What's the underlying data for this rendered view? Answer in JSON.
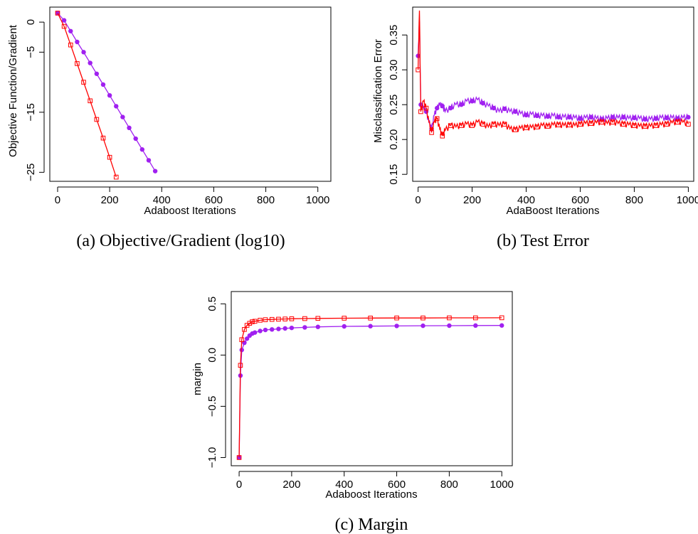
{
  "chart_data": [
    {
      "type": "line",
      "caption": "(a) Objective/Gradient (log10)",
      "xlabel": "Adaboost Iterations",
      "ylabel": "Objective Function/Gradient",
      "xlim": [
        -30,
        1050
      ],
      "ylim": [
        -26.5,
        2.5
      ],
      "xticks": [
        0,
        200,
        400,
        600,
        800,
        1000
      ],
      "yticks": [
        0,
        -5,
        -15,
        -25
      ],
      "x_tick_labels": [
        "0",
        "200",
        "400",
        "600",
        "800",
        "1000"
      ],
      "y_tick_labels": [
        "0",
        "−5",
        "−15",
        "−25"
      ],
      "grid": false,
      "series": [
        {
          "color": "#a020f0",
          "marker": "filled-circle",
          "x": [
            0,
            25,
            50,
            75,
            100,
            125,
            150,
            175,
            200,
            225,
            250,
            275,
            300,
            325,
            350,
            375
          ],
          "y": [
            1.5,
            0.3,
            -1.5,
            -3.3,
            -5.0,
            -6.8,
            -8.6,
            -10.4,
            -12.2,
            -14.0,
            -15.8,
            -17.6,
            -19.4,
            -21.2,
            -23.0,
            -24.8
          ]
        },
        {
          "color": "#ff0000",
          "marker": "open-square",
          "x": [
            0,
            25,
            50,
            75,
            100,
            125,
            150,
            175,
            200,
            225
          ],
          "y": [
            1.5,
            -0.7,
            -3.8,
            -6.9,
            -10.0,
            -13.1,
            -16.2,
            -19.3,
            -22.5,
            -25.8
          ]
        }
      ]
    },
    {
      "type": "line",
      "caption": "(b) Test Error",
      "xlabel": "AdaBoost Iterations",
      "ylabel": "Misclassification Error",
      "xlim": [
        -20,
        1020
      ],
      "ylim": [
        0.14,
        0.39
      ],
      "xticks": [
        0,
        200,
        400,
        600,
        800,
        1000
      ],
      "yticks": [
        0.15,
        0.2,
        0.25,
        0.3,
        0.35
      ],
      "x_tick_labels": [
        "0",
        "200",
        "400",
        "600",
        "800",
        "1000"
      ],
      "y_tick_labels": [
        "0.15",
        "0.20",
        "0.25",
        "0.30",
        "0.35"
      ],
      "grid": false,
      "series": [
        {
          "color": "#a020f0",
          "marker": "filled-circle",
          "x": [
            0,
            5,
            10,
            20,
            30,
            40,
            50,
            60,
            70,
            80,
            90,
            100,
            120,
            140,
            160,
            180,
            200,
            220,
            240,
            260,
            280,
            300,
            320,
            340,
            360,
            380,
            400,
            420,
            440,
            460,
            480,
            500,
            520,
            540,
            560,
            580,
            600,
            620,
            640,
            660,
            680,
            700,
            720,
            740,
            760,
            780,
            800,
            820,
            840,
            860,
            880,
            900,
            920,
            940,
            960,
            980,
            1000
          ],
          "y": [
            0.32,
            0.37,
            0.25,
            0.245,
            0.24,
            0.225,
            0.215,
            0.235,
            0.245,
            0.25,
            0.248,
            0.24,
            0.245,
            0.25,
            0.25,
            0.255,
            0.255,
            0.257,
            0.252,
            0.248,
            0.245,
            0.24,
            0.244,
            0.24,
            0.24,
            0.237,
            0.235,
            0.236,
            0.234,
            0.234,
            0.233,
            0.234,
            0.232,
            0.232,
            0.232,
            0.231,
            0.23,
            0.231,
            0.232,
            0.23,
            0.229,
            0.23,
            0.232,
            0.231,
            0.232,
            0.23,
            0.231,
            0.23,
            0.229,
            0.229,
            0.23,
            0.231,
            0.231,
            0.231,
            0.23,
            0.231,
            0.232
          ]
        },
        {
          "color": "#ff0000",
          "marker": "open-square",
          "x": [
            0,
            5,
            10,
            20,
            30,
            40,
            50,
            60,
            70,
            80,
            90,
            100,
            120,
            140,
            160,
            180,
            200,
            220,
            240,
            260,
            280,
            300,
            320,
            340,
            360,
            380,
            400,
            420,
            440,
            460,
            480,
            500,
            520,
            540,
            560,
            580,
            600,
            620,
            640,
            660,
            680,
            700,
            720,
            740,
            760,
            780,
            800,
            820,
            840,
            860,
            880,
            900,
            920,
            940,
            960,
            980,
            1000
          ],
          "y": [
            0.3,
            0.385,
            0.24,
            0.255,
            0.245,
            0.225,
            0.21,
            0.225,
            0.23,
            0.215,
            0.205,
            0.213,
            0.22,
            0.218,
            0.22,
            0.222,
            0.22,
            0.225,
            0.222,
            0.218,
            0.222,
            0.22,
            0.222,
            0.215,
            0.214,
            0.216,
            0.217,
            0.217,
            0.218,
            0.22,
            0.219,
            0.221,
            0.221,
            0.22,
            0.221,
            0.22,
            0.222,
            0.223,
            0.223,
            0.224,
            0.225,
            0.223,
            0.225,
            0.223,
            0.222,
            0.221,
            0.22,
            0.219,
            0.219,
            0.219,
            0.22,
            0.221,
            0.222,
            0.224,
            0.225,
            0.225,
            0.222
          ]
        }
      ]
    },
    {
      "type": "line",
      "caption": "(c) Margin",
      "xlabel": "Adaboost Iterations",
      "ylabel": "margin",
      "xlim": [
        -30,
        1040
      ],
      "ylim": [
        -1.08,
        0.62
      ],
      "xticks": [
        0,
        200,
        400,
        600,
        800,
        1000
      ],
      "yticks": [
        -1.0,
        -0.5,
        0.0,
        0.5
      ],
      "x_tick_labels": [
        "0",
        "200",
        "400",
        "600",
        "800",
        "1000"
      ],
      "y_tick_labels": [
        "−1.0",
        "−0.5",
        "0.0",
        "0.5"
      ],
      "grid": false,
      "series": [
        {
          "color": "#a020f0",
          "marker": "filled-circle",
          "x": [
            0,
            5,
            10,
            20,
            30,
            40,
            50,
            60,
            80,
            100,
            125,
            150,
            175,
            200,
            250,
            300,
            400,
            500,
            600,
            700,
            800,
            900,
            1000
          ],
          "y": [
            -1.0,
            -0.2,
            0.05,
            0.12,
            0.16,
            0.19,
            0.21,
            0.22,
            0.235,
            0.245,
            0.25,
            0.255,
            0.26,
            0.265,
            0.27,
            0.275,
            0.28,
            0.282,
            0.284,
            0.286,
            0.287,
            0.288,
            0.289
          ]
        },
        {
          "color": "#ff0000",
          "marker": "open-square",
          "x": [
            0,
            5,
            10,
            20,
            30,
            40,
            50,
            60,
            80,
            100,
            125,
            150,
            175,
            200,
            250,
            300,
            400,
            500,
            600,
            700,
            800,
            900,
            1000
          ],
          "y": [
            -1.0,
            -0.1,
            0.15,
            0.25,
            0.29,
            0.31,
            0.325,
            0.33,
            0.34,
            0.345,
            0.348,
            0.35,
            0.352,
            0.354,
            0.356,
            0.358,
            0.36,
            0.361,
            0.362,
            0.362,
            0.363,
            0.363,
            0.364
          ]
        }
      ]
    }
  ]
}
